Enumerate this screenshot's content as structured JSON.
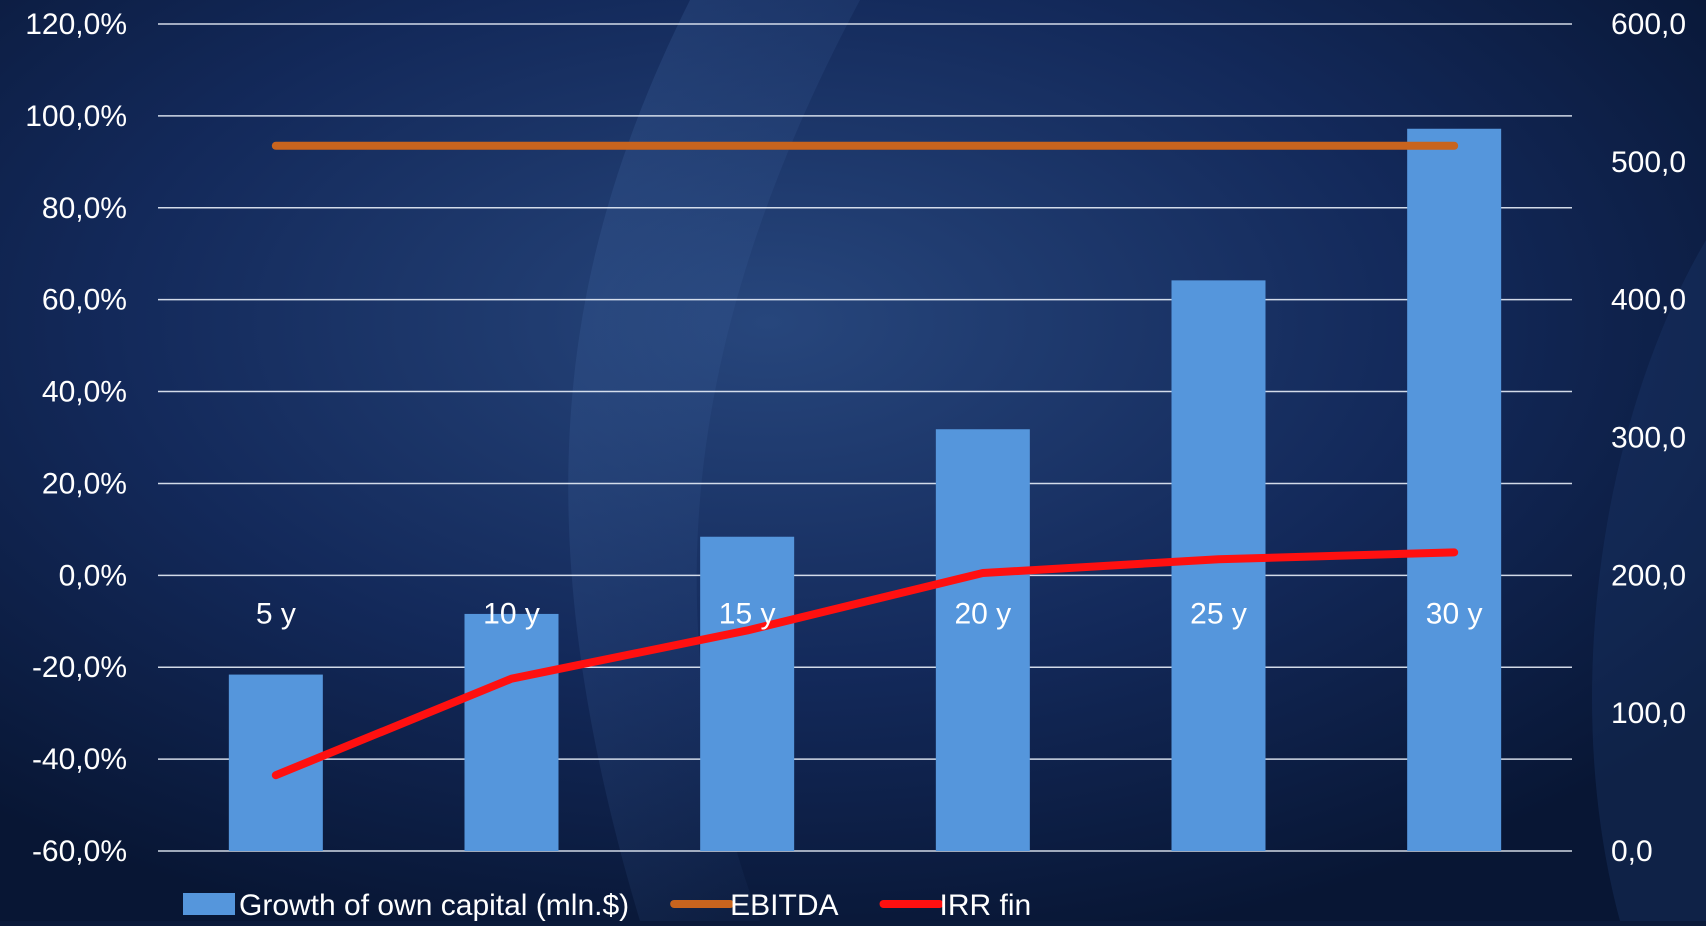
{
  "chart_data": {
    "type": "bar",
    "categories": [
      "5 y",
      "10 y",
      "15 y",
      "20 y",
      "25 y",
      "30 y"
    ],
    "series": [
      {
        "name": "Growth of own capital (mln.$)",
        "type": "bar",
        "axis": "right",
        "values": [
          128,
          172,
          228,
          306,
          414,
          524
        ],
        "color": "#5596dc"
      },
      {
        "name": "EBITDA",
        "type": "line",
        "axis": "left",
        "values": [
          93.5,
          93.5,
          93.5,
          93.5,
          93.5,
          93.5
        ],
        "color": "#c8641e"
      },
      {
        "name": "IRR fin",
        "type": "line",
        "axis": "left",
        "values": [
          -43.5,
          -22.5,
          -12,
          0.5,
          3.5,
          5
        ],
        "color": "#ff1010"
      }
    ],
    "left_axis": {
      "ylim": [
        -60,
        120
      ],
      "ticks": [
        "120,0%",
        "100,0%",
        "80,0%",
        "60,0%",
        "40,0%",
        "20,0%",
        "0,0%",
        "-20,0%",
        "-40,0%",
        "-60,0%"
      ]
    },
    "right_axis": {
      "ylim": [
        0,
        600
      ],
      "ticks": [
        "600,0",
        "500,0",
        "400,0",
        "300,0",
        "200,0",
        "100,0",
        "0,0"
      ]
    },
    "grid": true,
    "legend_position": "bottom",
    "category_label_position": "at-zero-line",
    "colors": {
      "background": "#0b1a3a",
      "gridline": "#e8eef8",
      "text": "#ffffff"
    }
  }
}
